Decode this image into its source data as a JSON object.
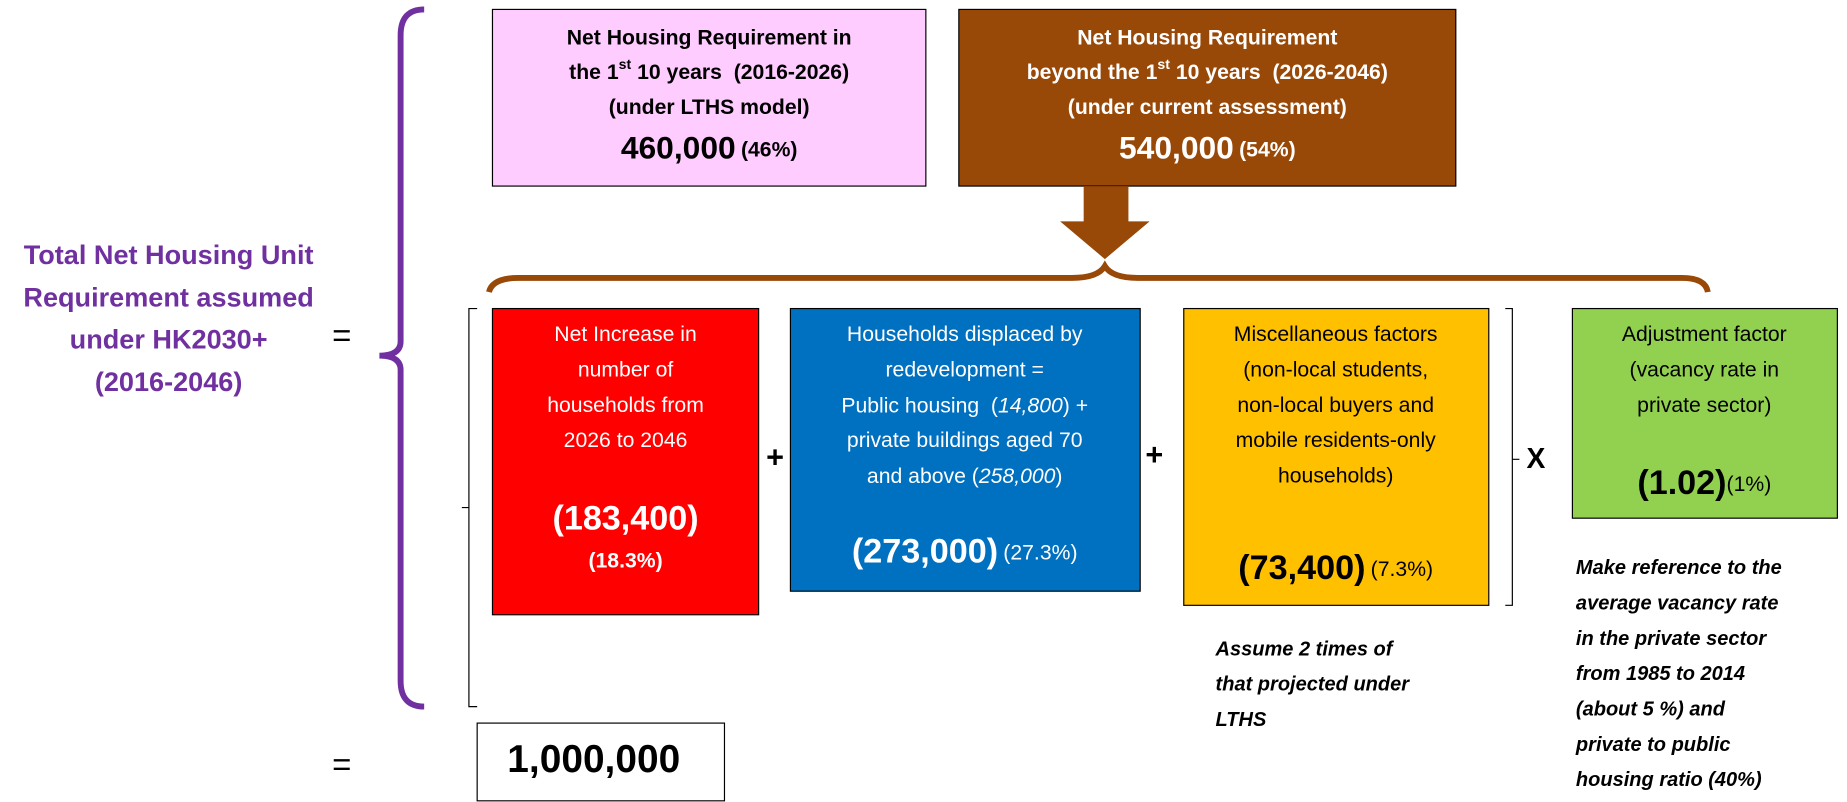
{
  "left_label": {
    "lines": [
      "Total Net Housing Unit",
      "Requirement assumed",
      "under HK2030+",
      "(2016-2046)"
    ],
    "equals": "="
  },
  "first_decade": {
    "line1": "Net Housing Requirement in",
    "line2_pre": "the 1",
    "line2_sup": "st",
    "line2_post": " 10 years  (2016-2026)",
    "line3": "(under LTHS model)",
    "value": "460,000",
    "share": "(46%)"
  },
  "beyond_decade": {
    "line1": "Net Housing Requirement",
    "line2_pre": "beyond the 1",
    "line2_sup": "st",
    "line2_post": " 10 years  (2026-2046)",
    "line3": "(under current assessment)",
    "value": "540,000",
    "share": "(54%)"
  },
  "components": {
    "households": {
      "lines": [
        "Net Increase in",
        "number of",
        "households from",
        "2026 to 2046"
      ],
      "value": "(183,400)",
      "share": "(18.3%)"
    },
    "plus1": "+",
    "displaced": {
      "line1": "Households displaced by",
      "line2": "redevelopment  =",
      "line3_pre": "Public housing  (",
      "line3_italic": "14,800",
      "line3_post": ") +",
      "line4": "private buildings aged 70",
      "line5_pre": "and above (",
      "line5_italic": "258,000",
      "line5_post": ")",
      "value": "(273,000)",
      "share": "(27.3%)"
    },
    "plus2": "+",
    "misc": {
      "lines": [
        "Miscellaneous factors",
        "(non-local students,",
        "non-local buyers and",
        "mobile residents-only",
        "households)"
      ],
      "value": "(73,400)",
      "share": "(7.3%)",
      "note": [
        "Assume 2 times of",
        "that projected under",
        "LTHS"
      ]
    },
    "times": "X",
    "adjustment": {
      "lines": [
        "Adjustment  factor",
        "(vacancy rate in",
        "private sector)"
      ],
      "value": "(1.02)",
      "share": "(1%)",
      "note": [
        "Make reference to the",
        "average vacancy rate",
        "in the private sector",
        "from 1985 to 2014",
        "(about 5 %) and",
        "private to public",
        "housing ratio (40%)"
      ]
    }
  },
  "total": {
    "equals": "=",
    "value": "1,000,000"
  }
}
